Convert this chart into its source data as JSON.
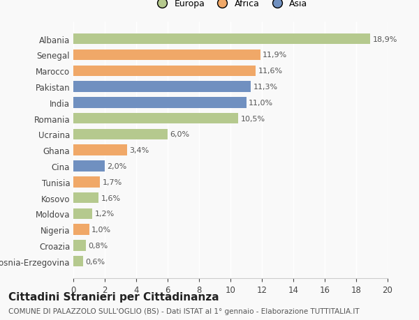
{
  "countries": [
    "Albania",
    "Senegal",
    "Marocco",
    "Pakistan",
    "India",
    "Romania",
    "Ucraina",
    "Ghana",
    "Cina",
    "Tunisia",
    "Kosovo",
    "Moldova",
    "Nigeria",
    "Croazia",
    "Bosnia-Erzegovina"
  ],
  "values": [
    18.9,
    11.9,
    11.6,
    11.3,
    11.0,
    10.5,
    6.0,
    3.4,
    2.0,
    1.7,
    1.6,
    1.2,
    1.0,
    0.8,
    0.6
  ],
  "labels": [
    "18,9%",
    "11,9%",
    "11,6%",
    "11,3%",
    "11,0%",
    "10,5%",
    "6,0%",
    "3,4%",
    "2,0%",
    "1,7%",
    "1,6%",
    "1,2%",
    "1,0%",
    "0,8%",
    "0,6%"
  ],
  "continents": [
    "Europa",
    "Africa",
    "Africa",
    "Asia",
    "Asia",
    "Europa",
    "Europa",
    "Africa",
    "Asia",
    "Africa",
    "Europa",
    "Europa",
    "Africa",
    "Europa",
    "Europa"
  ],
  "colors": {
    "Europa": "#b5c98e",
    "Africa": "#f0a868",
    "Asia": "#7090c0"
  },
  "legend_labels": [
    "Europa",
    "Africa",
    "Asia"
  ],
  "xlim": [
    0,
    20
  ],
  "xticks": [
    0,
    2,
    4,
    6,
    8,
    10,
    12,
    14,
    16,
    18,
    20
  ],
  "title": "Cittadini Stranieri per Cittadinanza",
  "subtitle": "COMUNE DI PALAZZOLO SULL'OGLIO (BS) - Dati ISTAT al 1° gennaio - Elaborazione TUTTITALIA.IT",
  "bg_color": "#f9f9f9",
  "bar_height": 0.68,
  "label_fontsize": 8,
  "ytick_fontsize": 8.5,
  "xtick_fontsize": 8.5,
  "title_fontsize": 11,
  "subtitle_fontsize": 7.5
}
